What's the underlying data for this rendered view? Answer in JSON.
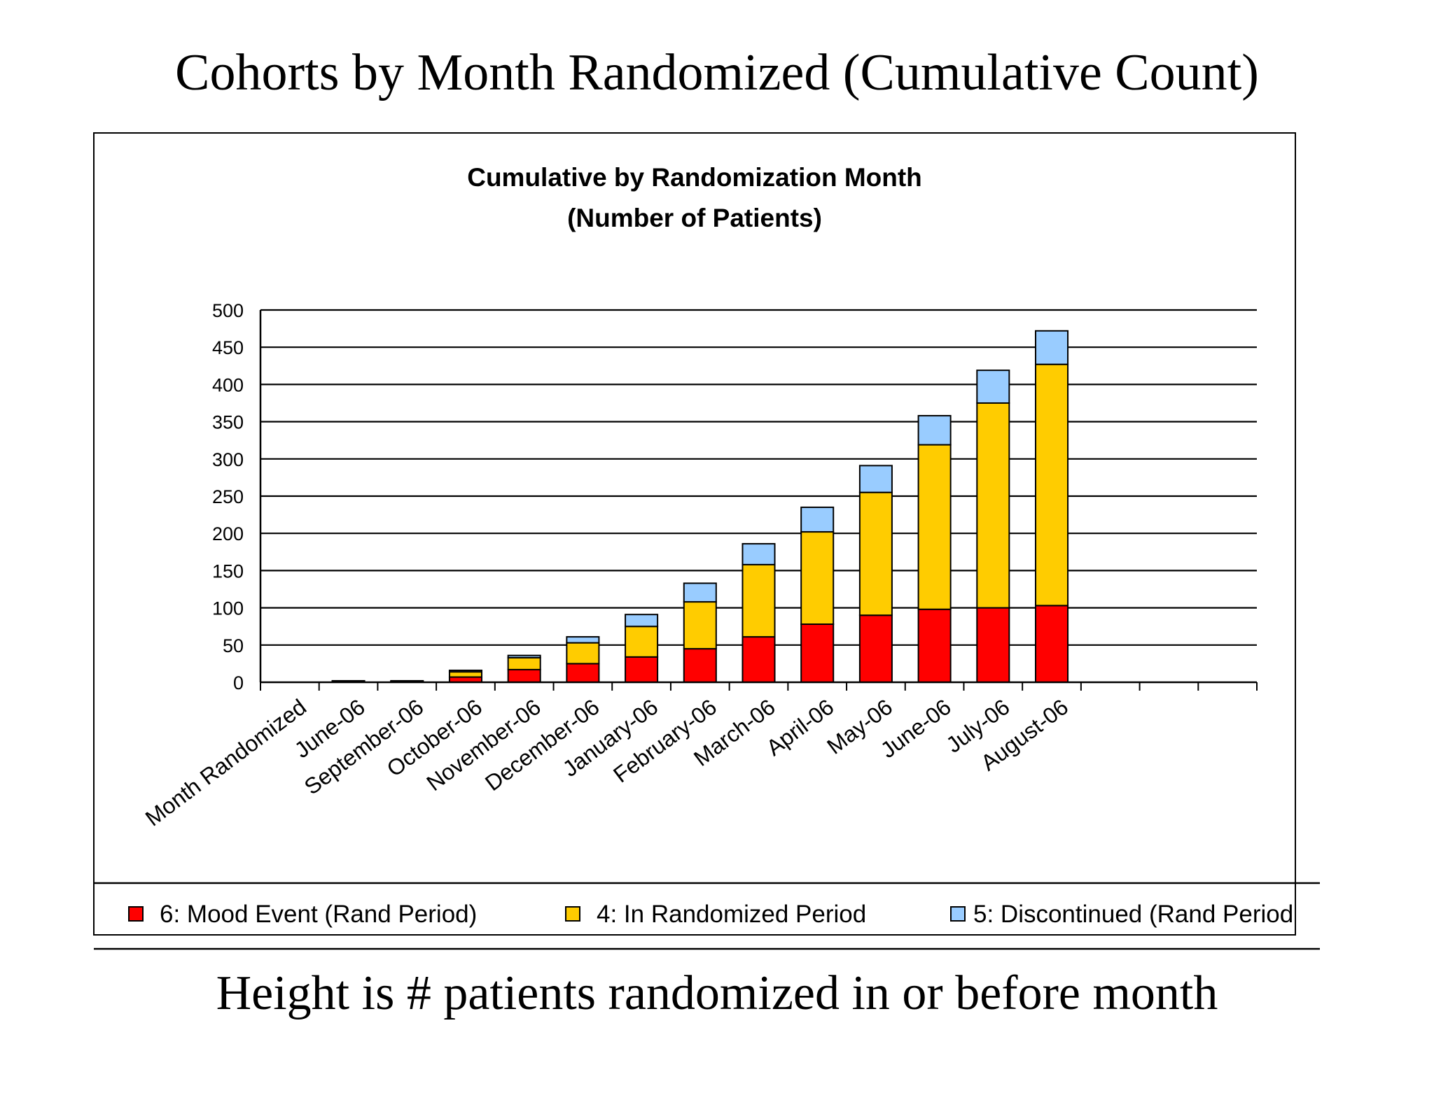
{
  "page": {
    "title": "Cohorts by Month Randomized (Cumulative Count)",
    "caption": "Height is # patients randomized in or before month"
  },
  "chart_data": {
    "type": "bar",
    "stacked": true,
    "title": "Cumulative by Randomization Month",
    "subtitle": "(Number of Patients)",
    "xlabel": "",
    "ylabel": "",
    "ylim": [
      0,
      500
    ],
    "yticks": [
      0,
      50,
      100,
      150,
      200,
      250,
      300,
      350,
      400,
      450,
      500
    ],
    "grid": true,
    "legend_position": "bottom",
    "slot_count": 17,
    "categories": [
      "Month Randomized",
      "June-06",
      "September-06",
      "October-06",
      "November-06",
      "December-06",
      "January-06",
      "February-06",
      "March-06",
      "April-06",
      "May-06",
      "June-06",
      "July-06",
      "August-06"
    ],
    "series": [
      {
        "name": "6: Mood Event (Rand Period)",
        "color": "#ff0000",
        "values": [
          0,
          1,
          1,
          7,
          17,
          25,
          34,
          45,
          61,
          78,
          90,
          98,
          100,
          103
        ]
      },
      {
        "name": "4: In Randomized Period",
        "color": "#ffcc00",
        "values": [
          0,
          1,
          1,
          7,
          16,
          28,
          41,
          63,
          97,
          124,
          165,
          221,
          275,
          324
        ]
      },
      {
        "name": "5: Discontinued (Rand Period",
        "color": "#99ccff",
        "values": [
          0,
          0,
          0,
          2,
          3,
          8,
          16,
          25,
          28,
          33,
          36,
          39,
          44,
          45
        ]
      }
    ]
  }
}
